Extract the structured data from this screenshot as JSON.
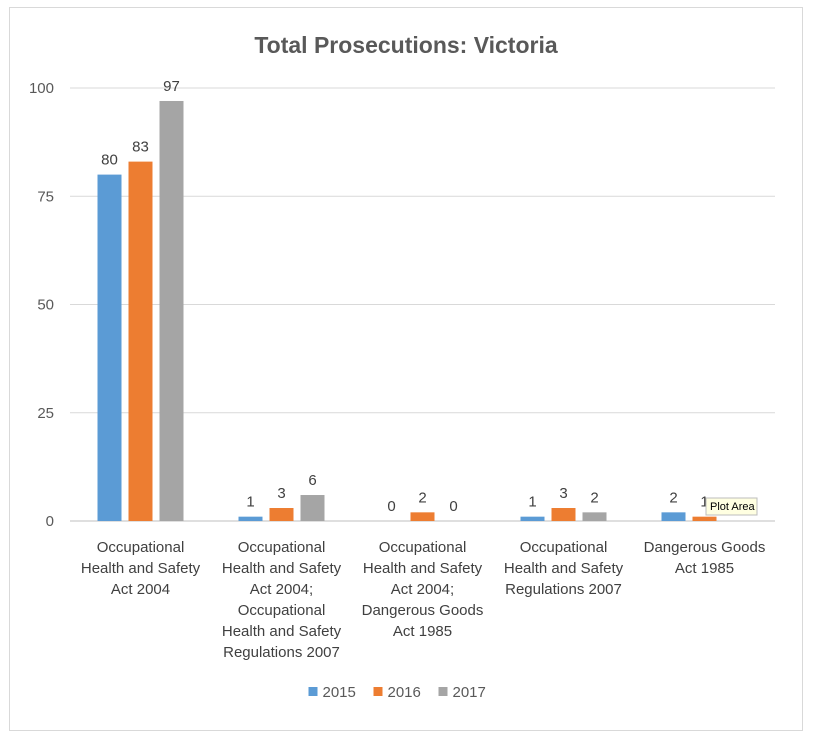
{
  "chart_data": {
    "type": "bar",
    "title": "Total Prosecutions: Victoria",
    "xlabel": "",
    "ylabel": "",
    "ylim": [
      0,
      100
    ],
    "yticks": [
      "0",
      "25",
      "50",
      "75",
      "100"
    ],
    "grid": true,
    "legend_position": "bottom",
    "categories": [
      [
        "Occupational",
        "Health and Safety",
        "Act 2004"
      ],
      [
        "Occupational",
        "Health and Safety",
        "Act 2004;",
        "Occupational",
        "Health and Safety",
        "Regulations 2007"
      ],
      [
        "Occupational",
        "Health and Safety",
        "Act 2004;",
        "Dangerous Goods",
        "Act 1985"
      ],
      [
        "Occupational",
        "Health and Safety",
        "Regulations 2007"
      ],
      [
        "Dangerous Goods",
        "Act 1985"
      ]
    ],
    "series": [
      {
        "name": "2015",
        "color": "#5b9bd5",
        "values": [
          80,
          1,
          0,
          1,
          2
        ]
      },
      {
        "name": "2016",
        "color": "#ed7d31",
        "values": [
          83,
          3,
          2,
          3,
          1
        ]
      },
      {
        "name": "2017",
        "color": "#a5a5a5",
        "values": [
          97,
          6,
          0,
          2,
          0
        ]
      }
    ]
  },
  "tooltip": {
    "text": "Plot Area"
  }
}
